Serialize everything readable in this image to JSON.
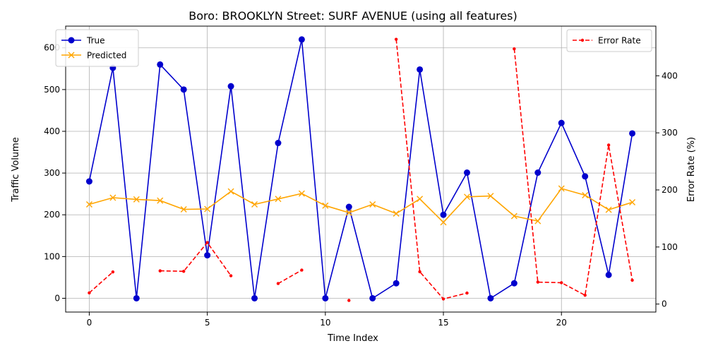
{
  "chart_data": {
    "type": "line",
    "title": "Boro: BROOKLYN Street: SURF AVENUE (using all features)",
    "xlabel": "Time Index",
    "ylabel": "Traffic Volume",
    "y2label": "Error Rate (%)",
    "x": [
      0,
      1,
      2,
      3,
      4,
      5,
      6,
      7,
      8,
      9,
      10,
      11,
      12,
      13,
      14,
      15,
      16,
      17,
      18,
      19,
      20,
      21,
      22,
      23
    ],
    "xlim": [
      -1,
      24
    ],
    "ylim": [
      -33,
      652
    ],
    "y2lim": [
      -14,
      487
    ],
    "xticks": [
      0,
      5,
      10,
      15,
      20
    ],
    "yticks": [
      0,
      100,
      200,
      300,
      400,
      500,
      600
    ],
    "y2ticks": [
      0,
      100,
      200,
      300,
      400
    ],
    "grid": true,
    "legend_left_placement": "upper-left",
    "legend_right_placement": "upper-right",
    "series": [
      {
        "name": "True",
        "axis": "left",
        "color": "#0000cd",
        "marker": "circle",
        "values": [
          280,
          552,
          0,
          560,
          500,
          103,
          508,
          0,
          372,
          620,
          0,
          219,
          0,
          36,
          548,
          200,
          301,
          0,
          36,
          301,
          420,
          292,
          56,
          395
        ]
      },
      {
        "name": "Predicted",
        "axis": "left",
        "color": "#ffa500",
        "marker": "x",
        "values": [
          225,
          241,
          237,
          234,
          213,
          214,
          256,
          225,
          238,
          251,
          222,
          205,
          225,
          203,
          238,
          182,
          243,
          245,
          197,
          185,
          263,
          247,
          212,
          230
        ]
      },
      {
        "name": "Error Rate",
        "axis": "right",
        "color": "#ff0000",
        "marker": "dot",
        "dashed": true,
        "values": [
          19.6,
          56.3,
          null,
          58.2,
          57.4,
          107.8,
          49.6,
          null,
          36.0,
          59.5,
          null,
          6.4,
          null,
          463.9,
          56.6,
          9.0,
          19.3,
          null,
          447.2,
          38.5,
          37.4,
          15.4,
          278.6,
          41.8
        ]
      }
    ]
  }
}
